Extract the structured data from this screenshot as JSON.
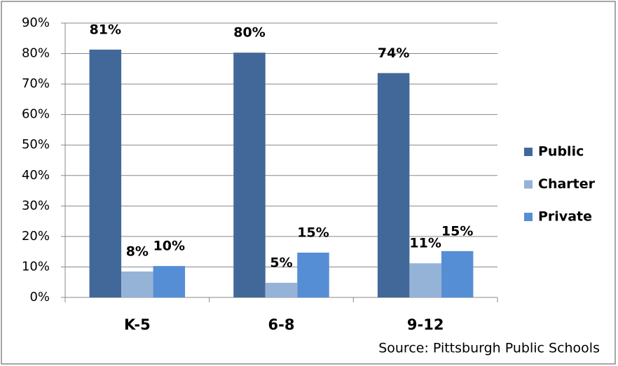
{
  "chart_data": {
    "type": "bar",
    "source": "Source: Pittsburgh Public Schools",
    "categories": [
      "K-5",
      "6-8",
      "9-12"
    ],
    "series": [
      {
        "name": "Public",
        "color": "#416899",
        "values": [
          81.3,
          80.3,
          73.6
        ],
        "value_labels": [
          "81%",
          "80%",
          "74%"
        ]
      },
      {
        "name": "Charter",
        "color": "#95b3d7",
        "values": [
          8.5,
          4.8,
          11.2
        ],
        "value_labels": [
          "8%",
          "5%",
          "11%"
        ]
      },
      {
        "name": "Private",
        "color": "#558ed5",
        "values": [
          10.3,
          14.7,
          15.2
        ],
        "value_labels": [
          "10%",
          "15%",
          "15%"
        ]
      }
    ],
    "ylim": [
      0,
      90
    ],
    "yticks": [
      {
        "value": 0,
        "label": "0%"
      },
      {
        "value": 10,
        "label": "10%"
      },
      {
        "value": 20,
        "label": "20%"
      },
      {
        "value": 30,
        "label": "30%"
      },
      {
        "value": 40,
        "label": "40%"
      },
      {
        "value": 50,
        "label": "50%"
      },
      {
        "value": 60,
        "label": "60%"
      },
      {
        "value": 70,
        "label": "70%"
      },
      {
        "value": 80,
        "label": "80%"
      },
      {
        "value": 90,
        "label": "90%"
      }
    ],
    "grid": true,
    "legend": "right"
  }
}
